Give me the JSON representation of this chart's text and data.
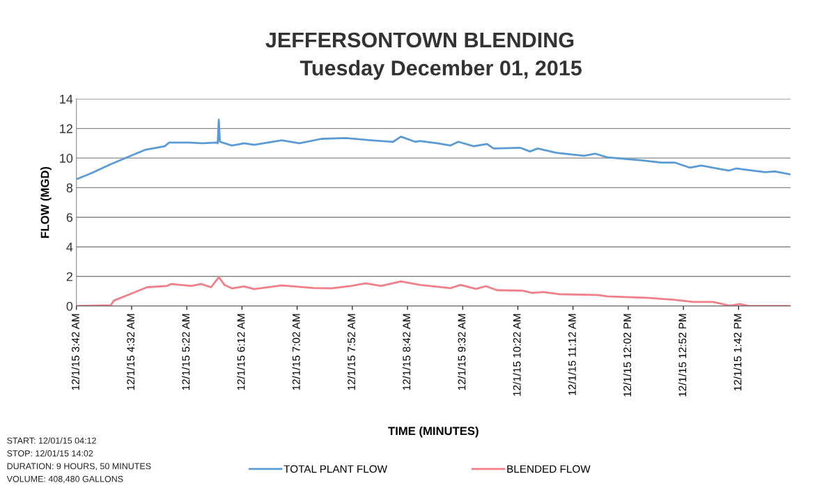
{
  "chart_data": {
    "type": "line",
    "title": "JEFFERSONTOWN BLENDING",
    "subtitle": "Tuesday December 01, 2015",
    "xlabel": "TIME (MINUTES)",
    "ylabel": "FLOW (MGD)",
    "xlim": [
      "2015-12-01T03:42",
      "2015-12-01T14:29"
    ],
    "ylim": [
      0,
      14
    ],
    "yticks": [
      0,
      2,
      4,
      6,
      8,
      10,
      12,
      14
    ],
    "xticks": [
      {
        "value": "2015-12-01T03:42",
        "label": "12/1/15 3:42 AM"
      },
      {
        "value": "2015-12-01T04:32",
        "label": "12/1/15 4:32 AM"
      },
      {
        "value": "2015-12-01T05:22",
        "label": "12/1/15 5:22 AM"
      },
      {
        "value": "2015-12-01T06:12",
        "label": "12/1/15 6:12 AM"
      },
      {
        "value": "2015-12-01T07:02",
        "label": "12/1/15 7:02 AM"
      },
      {
        "value": "2015-12-01T07:52",
        "label": "12/1/15 7:52 AM"
      },
      {
        "value": "2015-12-01T08:42",
        "label": "12/1/15 8:42 AM"
      },
      {
        "value": "2015-12-01T09:32",
        "label": "12/1/15 9:32 AM"
      },
      {
        "value": "2015-12-01T10:22",
        "label": "12/1/15 10:22 AM"
      },
      {
        "value": "2015-12-01T11:12",
        "label": "12/1/15 11:12 AM"
      },
      {
        "value": "2015-12-01T12:02",
        "label": "12/1/15 12:02 PM"
      },
      {
        "value": "2015-12-01T12:52",
        "label": "12/1/15 12:52 PM"
      },
      {
        "value": "2015-12-01T13:42",
        "label": "12/1/15 1:42 PM"
      }
    ],
    "grid": "y",
    "legend": "bottom",
    "marker": "none",
    "line_style": "solid",
    "series": [
      {
        "name": "TOTAL PLANT FLOW",
        "color": "#5b9bd5",
        "x": [
          "2015-12-01T03:43",
          "2015-12-01T03:56",
          "2015-12-01T04:12",
          "2015-12-01T04:28",
          "2015-12-01T04:44",
          "2015-12-01T05:02",
          "2015-12-01T05:06",
          "2015-12-01T05:24",
          "2015-12-01T05:36",
          "2015-12-01T05:49",
          "2015-12-01T05:50",
          "2015-12-01T05:51",
          "2015-12-01T05:52",
          "2015-12-01T06:03",
          "2015-12-01T06:14",
          "2015-12-01T06:23",
          "2015-12-01T06:48",
          "2015-12-01T07:04",
          "2015-12-01T07:24",
          "2015-12-01T07:46",
          "2015-12-01T08:09",
          "2015-12-01T08:29",
          "2015-12-01T08:36",
          "2015-12-01T08:49",
          "2015-12-01T08:53",
          "2015-12-01T09:09",
          "2015-12-01T09:21",
          "2015-12-01T09:28",
          "2015-12-01T09:42",
          "2015-12-01T09:54",
          "2015-12-01T10:00",
          "2015-12-01T10:24",
          "2015-12-01T10:33",
          "2015-12-01T10:40",
          "2015-12-01T10:57",
          "2015-12-01T11:22",
          "2015-12-01T11:32",
          "2015-12-01T11:43",
          "2015-12-01T12:14",
          "2015-12-01T12:32",
          "2015-12-01T12:44",
          "2015-12-01T12:58",
          "2015-12-01T13:08",
          "2015-12-01T13:33",
          "2015-12-01T13:40",
          "2015-12-01T14:06",
          "2015-12-01T14:15",
          "2015-12-01T14:29"
        ],
        "values": [
          8.6,
          9.0,
          9.55,
          10.05,
          10.55,
          10.8,
          11.05,
          11.05,
          11.0,
          11.05,
          11.0,
          12.6,
          11.1,
          10.85,
          11.0,
          10.9,
          11.2,
          11.0,
          11.3,
          11.35,
          11.2,
          11.1,
          11.45,
          11.1,
          11.15,
          11.0,
          10.85,
          11.1,
          10.8,
          10.95,
          10.65,
          10.7,
          10.45,
          10.65,
          10.35,
          10.15,
          10.3,
          10.05,
          9.85,
          9.7,
          9.7,
          9.35,
          9.5,
          9.15,
          9.3,
          9.05,
          9.1,
          8.9
        ]
      },
      {
        "name": "BLENDED FLOW",
        "color": "#f07f89",
        "x": [
          "2015-12-01T03:42",
          "2015-12-01T04:13",
          "2015-12-01T04:16",
          "2015-12-01T04:32",
          "2015-12-01T04:46",
          "2015-12-01T05:04",
          "2015-12-01T05:08",
          "2015-12-01T05:26",
          "2015-12-01T05:35",
          "2015-12-01T05:44",
          "2015-12-01T05:51",
          "2015-12-01T05:56",
          "2015-12-01T06:03",
          "2015-12-01T06:14",
          "2015-12-01T06:23",
          "2015-12-01T06:48",
          "2015-12-01T07:17",
          "2015-12-01T07:33",
          "2015-12-01T07:51",
          "2015-12-01T08:04",
          "2015-12-01T08:18",
          "2015-12-01T08:36",
          "2015-12-01T08:53",
          "2015-12-01T09:11",
          "2015-12-01T09:21",
          "2015-12-01T09:30",
          "2015-12-01T09:44",
          "2015-12-01T09:53",
          "2015-12-01T10:03",
          "2015-12-01T10:26",
          "2015-12-01T10:35",
          "2015-12-01T10:45",
          "2015-12-01T10:59",
          "2015-12-01T11:34",
          "2015-12-01T11:43",
          "2015-12-01T12:21",
          "2015-12-01T12:44",
          "2015-12-01T13:01",
          "2015-12-01T13:19",
          "2015-12-01T13:34",
          "2015-12-01T13:43",
          "2015-12-01T13:52",
          "2015-12-01T14:06",
          "2015-12-01T14:29"
        ],
        "values": [
          0.0,
          0.05,
          0.37,
          0.85,
          1.27,
          1.36,
          1.49,
          1.36,
          1.49,
          1.27,
          1.95,
          1.44,
          1.19,
          1.32,
          1.15,
          1.39,
          1.22,
          1.19,
          1.36,
          1.53,
          1.36,
          1.66,
          1.43,
          1.29,
          1.21,
          1.43,
          1.16,
          1.34,
          1.07,
          1.04,
          0.89,
          0.95,
          0.8,
          0.75,
          0.65,
          0.55,
          0.42,
          0.28,
          0.28,
          0.02,
          0.14,
          0.0,
          0.0,
          0.0
        ]
      }
    ],
    "annotations": [
      "START: 12/01/15 04:12",
      "STOP: 12/01/15 14:02",
      "DURATION: 9 HOURS, 50 MINUTES",
      "VOLUME: 408,480 GALLONS"
    ]
  }
}
